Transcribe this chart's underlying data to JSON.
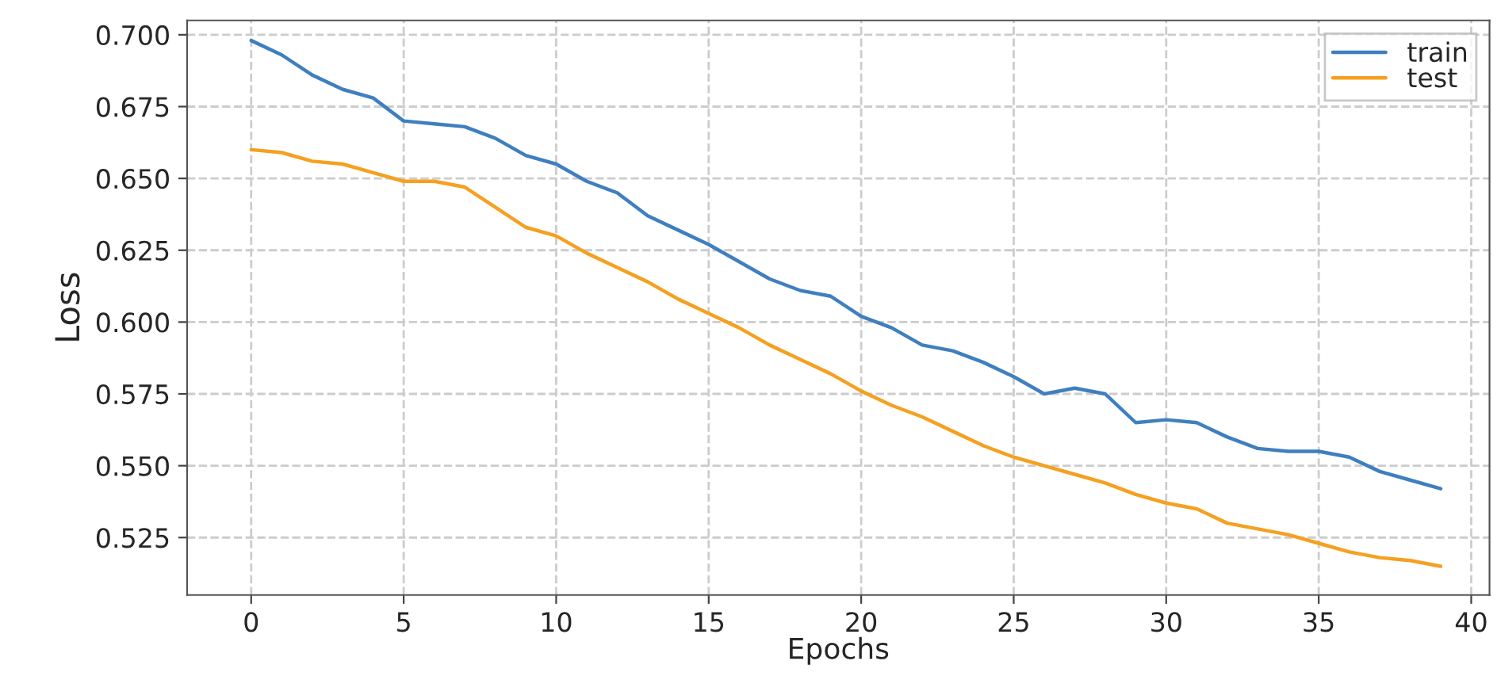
{
  "chart_data": {
    "type": "line",
    "xlabel": "Epochs",
    "ylabel": "Loss",
    "x": [
      0,
      1,
      2,
      3,
      4,
      5,
      6,
      7,
      8,
      9,
      10,
      11,
      12,
      13,
      14,
      15,
      16,
      17,
      18,
      19,
      20,
      21,
      22,
      23,
      24,
      25,
      26,
      27,
      28,
      29,
      30,
      31,
      32,
      33,
      34,
      35,
      36,
      37,
      38,
      39
    ],
    "series": [
      {
        "name": "train",
        "color": "#3f7fbf",
        "values": [
          0.698,
          0.693,
          0.686,
          0.681,
          0.678,
          0.67,
          0.669,
          0.668,
          0.664,
          0.658,
          0.655,
          0.649,
          0.645,
          0.637,
          0.632,
          0.627,
          0.621,
          0.615,
          0.611,
          0.609,
          0.602,
          0.598,
          0.592,
          0.59,
          0.586,
          0.581,
          0.575,
          0.577,
          0.575,
          0.565,
          0.566,
          0.565,
          0.56,
          0.556,
          0.555,
          0.555,
          0.553,
          0.548,
          0.545,
          0.542
        ]
      },
      {
        "name": "test",
        "color": "#f5a020",
        "values": [
          0.66,
          0.659,
          0.656,
          0.655,
          0.652,
          0.649,
          0.649,
          0.647,
          0.64,
          0.633,
          0.63,
          0.624,
          0.619,
          0.614,
          0.608,
          0.603,
          0.598,
          0.592,
          0.587,
          0.582,
          0.576,
          0.571,
          0.567,
          0.562,
          0.557,
          0.553,
          0.55,
          0.547,
          0.544,
          0.54,
          0.537,
          0.535,
          0.53,
          0.528,
          0.526,
          0.523,
          0.52,
          0.518,
          0.517,
          0.515
        ]
      }
    ],
    "xlim": [
      -2.1,
      40.6
    ],
    "ylim": [
      0.505,
      0.705
    ],
    "xticks": [
      0,
      5,
      10,
      15,
      20,
      25,
      30,
      35,
      40
    ],
    "yticks": [
      {
        "value": 0.525,
        "label": "0.525"
      },
      {
        "value": 0.55,
        "label": "0.550"
      },
      {
        "value": 0.575,
        "label": "0.575"
      },
      {
        "value": 0.6,
        "label": "0.600"
      },
      {
        "value": 0.625,
        "label": "0.625"
      },
      {
        "value": 0.65,
        "label": "0.650"
      },
      {
        "value": 0.675,
        "label": "0.675"
      },
      {
        "value": 0.7,
        "label": "0.700"
      }
    ],
    "grid": true,
    "legend": "top right",
    "line_style": "solid"
  }
}
